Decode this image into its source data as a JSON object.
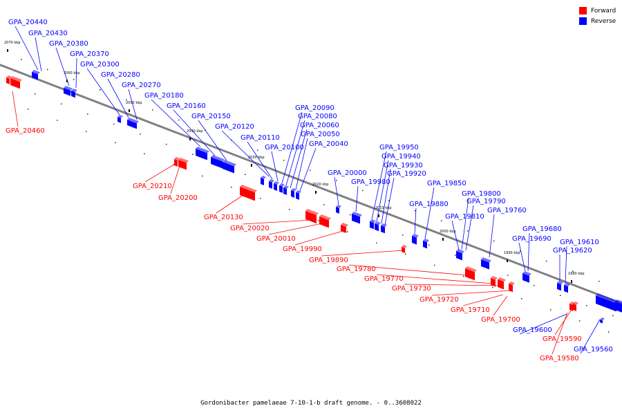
{
  "legend": [
    {
      "label": "Forward",
      "color": "#ff0000"
    },
    {
      "label": "Reverse",
      "color": "#0000ff"
    }
  ],
  "caption": "Gordonibacter pamelaeae 7-10-1-b draft genome. - 0..3608022",
  "ticks": [
    "2070 kbp",
    "2060 kbp",
    "2050 kbp",
    "2040 kbp",
    "2030 kbp",
    "2020 kbp",
    "2010 kbp",
    "2000 kbp",
    "1990 kbp",
    "1980 kbp"
  ],
  "reverse_genes": [
    "GPA_20440",
    "GPA_20430",
    "GPA_20380",
    "GPA_20370",
    "GPA_20300",
    "GPA_20280",
    "GPA_20270",
    "GPA_20180",
    "GPA_20160",
    "GPA_20150",
    "GPA_20120",
    "GPA_20110",
    "GPA_20100",
    "GPA_20090",
    "GPA_20080",
    "GPA_20060",
    "GPA_20050",
    "GPA_20040",
    "GPA_20000",
    "GPA_19980",
    "GPA_19950",
    "GPA_19940",
    "GPA_19930",
    "GPA_19920",
    "GPA_19880",
    "GPA_19850",
    "GPA_19810",
    "GPA_19800",
    "GPA_19790",
    "GPA_19760",
    "GPA_19690",
    "GPA_19680",
    "GPA_19620",
    "GPA_19610",
    "GPA_19600",
    "GPA_19560"
  ],
  "forward_genes": [
    "GPA_20460",
    "GPA_20210",
    "GPA_20200",
    "GPA_20130",
    "GPA_20020",
    "GPA_20010",
    "GPA_19990",
    "GPA_19890",
    "GPA_19780",
    "GPA_19770",
    "GPA_19730",
    "GPA_19720",
    "GPA_19710",
    "GPA_19700",
    "GPA_19590",
    "GPA_19580"
  ],
  "colors": {
    "forward": "#ff0000",
    "reverse": "#0000ff",
    "axis": "#808080"
  }
}
